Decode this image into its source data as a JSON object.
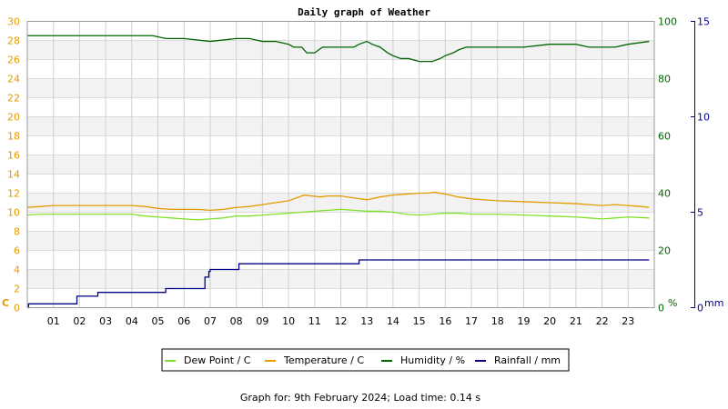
{
  "chart_data": {
    "type": "line",
    "title": "Daily graph of Weather",
    "footer": "Graph for: 9th February 2024; Load time: 0.14 s",
    "x_ticks": [
      "01",
      "02",
      "03",
      "04",
      "05",
      "06",
      "07",
      "08",
      "09",
      "10",
      "11",
      "12",
      "13",
      "14",
      "15",
      "16",
      "17",
      "18",
      "19",
      "20",
      "21",
      "22",
      "23"
    ],
    "x_range": [
      0,
      24
    ],
    "axes": {
      "left": {
        "unit_label": "C",
        "range": [
          0,
          30
        ],
        "ticks": [
          0,
          2,
          4,
          6,
          8,
          10,
          12,
          14,
          16,
          18,
          20,
          22,
          24,
          26,
          28,
          30
        ],
        "color": "#e39b00"
      },
      "right1": {
        "unit_label": "%",
        "range": [
          0,
          100
        ],
        "ticks": [
          0,
          20,
          40,
          60,
          80,
          100
        ],
        "color": "#006400"
      },
      "right2": {
        "unit_label": "mm",
        "range": [
          0,
          15
        ],
        "ticks": [
          0,
          5,
          10,
          15
        ],
        "color": "#00008b"
      }
    },
    "grid": true,
    "legend_position": "bottom",
    "series": [
      {
        "name": "Dew Point / C",
        "axis": "left",
        "color": "#7fe02a",
        "x": [
          0.0,
          0.5,
          1.0,
          2.0,
          3.0,
          4.0,
          4.5,
          5.0,
          5.5,
          6.0,
          6.5,
          7.0,
          7.5,
          8.0,
          8.5,
          9.0,
          9.5,
          10.0,
          10.5,
          11.0,
          11.5,
          12.0,
          12.5,
          13.0,
          13.5,
          14.0,
          14.5,
          15.0,
          15.5,
          16.0,
          16.5,
          17.0,
          17.5,
          18.0,
          19.0,
          20.0,
          21.0,
          21.5,
          22.0,
          22.5,
          23.0,
          23.8
        ],
        "y": [
          9.7,
          9.8,
          9.8,
          9.8,
          9.8,
          9.8,
          9.6,
          9.5,
          9.4,
          9.3,
          9.2,
          9.3,
          9.4,
          9.6,
          9.6,
          9.7,
          9.8,
          9.9,
          10.0,
          10.1,
          10.2,
          10.3,
          10.2,
          10.1,
          10.1,
          10.0,
          9.8,
          9.7,
          9.8,
          9.9,
          9.9,
          9.8,
          9.8,
          9.8,
          9.7,
          9.6,
          9.5,
          9.4,
          9.3,
          9.4,
          9.5,
          9.4
        ]
      },
      {
        "name": "Temperature / C",
        "axis": "left",
        "color": "#e39b00",
        "x": [
          0.0,
          0.5,
          1.0,
          2.0,
          3.0,
          4.0,
          4.5,
          5.0,
          5.5,
          6.0,
          6.5,
          7.0,
          7.5,
          8.0,
          8.5,
          9.0,
          9.5,
          10.0,
          10.3,
          10.6,
          10.9,
          11.2,
          11.5,
          12.0,
          12.5,
          13.0,
          13.5,
          14.0,
          14.5,
          15.0,
          15.3,
          15.6,
          16.0,
          16.5,
          17.0,
          17.5,
          18.0,
          19.0,
          20.0,
          21.0,
          21.5,
          22.0,
          22.5,
          23.0,
          23.5,
          23.8
        ],
        "y": [
          10.5,
          10.6,
          10.7,
          10.7,
          10.7,
          10.7,
          10.6,
          10.4,
          10.3,
          10.3,
          10.3,
          10.2,
          10.3,
          10.5,
          10.6,
          10.8,
          11.0,
          11.2,
          11.5,
          11.8,
          11.7,
          11.6,
          11.7,
          11.7,
          11.5,
          11.3,
          11.6,
          11.8,
          11.9,
          12.0,
          12.0,
          12.1,
          11.9,
          11.6,
          11.4,
          11.3,
          11.2,
          11.1,
          11.0,
          10.9,
          10.8,
          10.7,
          10.8,
          10.7,
          10.6,
          10.5
        ]
      },
      {
        "name": "Humidity / %",
        "axis": "right1",
        "color": "#006400",
        "x": [
          0.0,
          2.0,
          4.0,
          4.8,
          5.3,
          6.0,
          7.0,
          8.0,
          8.5,
          9.0,
          9.5,
          10.0,
          10.2,
          10.5,
          10.7,
          11.0,
          11.3,
          12.0,
          12.5,
          12.7,
          13.0,
          13.2,
          13.5,
          13.8,
          14.0,
          14.3,
          14.6,
          15.0,
          15.2,
          15.5,
          15.8,
          16.0,
          16.3,
          16.5,
          16.8,
          17.0,
          18.0,
          19.0,
          20.0,
          21.0,
          21.5,
          22.0,
          22.5,
          23.0,
          23.8
        ],
        "y": [
          95,
          95,
          95,
          95,
          94,
          94,
          93,
          94,
          94,
          93,
          93,
          92,
          91,
          91,
          89,
          89,
          91,
          91,
          91,
          92,
          93,
          92,
          91,
          89,
          88,
          87,
          87,
          86,
          86,
          86,
          87,
          88,
          89,
          90,
          91,
          91,
          91,
          91,
          92,
          92,
          91,
          91,
          91,
          92,
          93
        ]
      },
      {
        "name": "Rainfall / mm",
        "axis": "right2",
        "color": "#00008b",
        "step": true,
        "x": [
          0.0,
          0.05,
          1.9,
          2.7,
          5.3,
          6.8,
          6.95,
          7.0,
          8.1,
          12.7,
          23.8
        ],
        "y": [
          0.0,
          0.2,
          0.6,
          0.8,
          1.0,
          1.6,
          1.9,
          2.0,
          2.3,
          2.5,
          2.5
        ]
      }
    ]
  }
}
